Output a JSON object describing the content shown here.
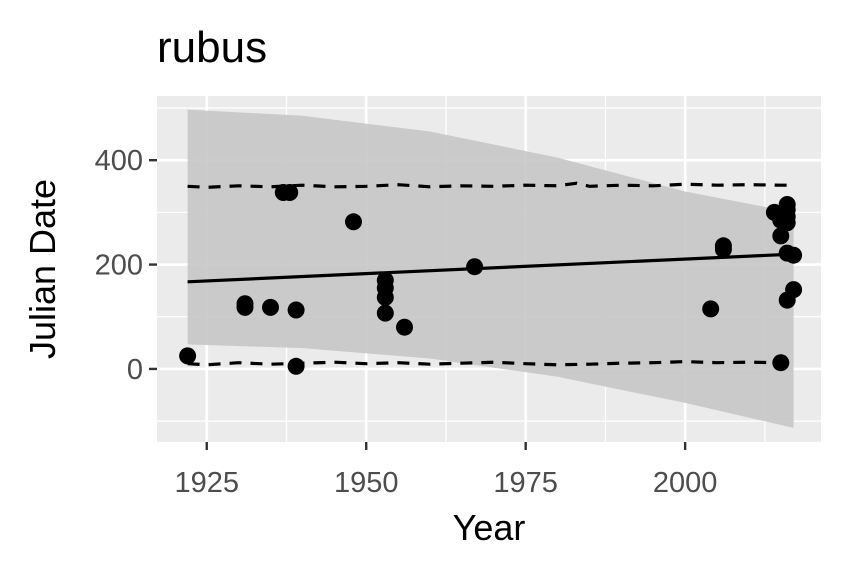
{
  "chart_data": {
    "type": "scatter",
    "title": "rubus",
    "xlabel": "Year",
    "ylabel": "Julian Date",
    "xlim": [
      1917.2,
      2021.3
    ],
    "ylim": [
      -140,
      523
    ],
    "x_ticks": [
      1925,
      1950,
      1975,
      2000
    ],
    "y_ticks": [
      0,
      200,
      400
    ],
    "grid": true,
    "legend": "none",
    "colors": {
      "panel": "#ebebeb",
      "grid": "#ffffff",
      "points": "#000000",
      "ribbon": "#c6c6c6",
      "tick_text": "#4d4d4d"
    },
    "points": [
      {
        "x": 1922,
        "y": 25
      },
      {
        "x": 1931,
        "y": 118
      },
      {
        "x": 1931,
        "y": 125
      },
      {
        "x": 1935,
        "y": 118
      },
      {
        "x": 1937,
        "y": 338
      },
      {
        "x": 1938,
        "y": 338
      },
      {
        "x": 1939,
        "y": 113
      },
      {
        "x": 1939,
        "y": 5
      },
      {
        "x": 1948,
        "y": 282
      },
      {
        "x": 1953,
        "y": 170
      },
      {
        "x": 1953,
        "y": 155
      },
      {
        "x": 1953,
        "y": 137
      },
      {
        "x": 1953,
        "y": 107
      },
      {
        "x": 1956,
        "y": 80
      },
      {
        "x": 1967,
        "y": 196
      },
      {
        "x": 2004,
        "y": 115
      },
      {
        "x": 2006,
        "y": 236
      },
      {
        "x": 2006,
        "y": 229
      },
      {
        "x": 2014,
        "y": 300
      },
      {
        "x": 2015,
        "y": 295
      },
      {
        "x": 2015,
        "y": 285
      },
      {
        "x": 2015,
        "y": 255
      },
      {
        "x": 2015,
        "y": 12
      },
      {
        "x": 2016,
        "y": 315
      },
      {
        "x": 2016,
        "y": 305
      },
      {
        "x": 2016,
        "y": 292
      },
      {
        "x": 2016,
        "y": 280
      },
      {
        "x": 2016,
        "y": 222
      },
      {
        "x": 2016,
        "y": 132
      },
      {
        "x": 2017,
        "y": 152
      },
      {
        "x": 2017,
        "y": 218
      }
    ],
    "fit_line": {
      "x": [
        1922,
        2017
      ],
      "y": [
        167,
        220
      ]
    },
    "confidence_band": {
      "x": [
        1922,
        1940,
        1960,
        1980,
        2000,
        2017
      ],
      "upper": [
        497,
        485,
        455,
        405,
        340,
        300
      ],
      "lower": [
        47,
        40,
        20,
        -15,
        -65,
        -113
      ]
    },
    "quantile_upper": {
      "x": [
        1922,
        1925,
        1930,
        1935,
        1940,
        1945,
        1950,
        1955,
        1960,
        1965,
        1970,
        1975,
        1980,
        1983,
        1985,
        1990,
        1995,
        2000,
        2005,
        2010,
        2015,
        2017
      ],
      "y": [
        350,
        348,
        351,
        349,
        352,
        349,
        350,
        353,
        349,
        351,
        350,
        352,
        351,
        356,
        350,
        352,
        351,
        354,
        352,
        353,
        352,
        352
      ]
    },
    "quantile_lower": {
      "x": [
        1922,
        1925,
        1930,
        1935,
        1940,
        1945,
        1950,
        1955,
        1960,
        1965,
        1970,
        1975,
        1980,
        1985,
        1990,
        1995,
        2000,
        2005,
        2010,
        2015,
        2017
      ],
      "y": [
        10,
        8,
        12,
        9,
        11,
        13,
        10,
        12,
        9,
        11,
        13,
        10,
        8,
        9,
        11,
        12,
        14,
        12,
        13,
        12,
        11
      ]
    }
  }
}
